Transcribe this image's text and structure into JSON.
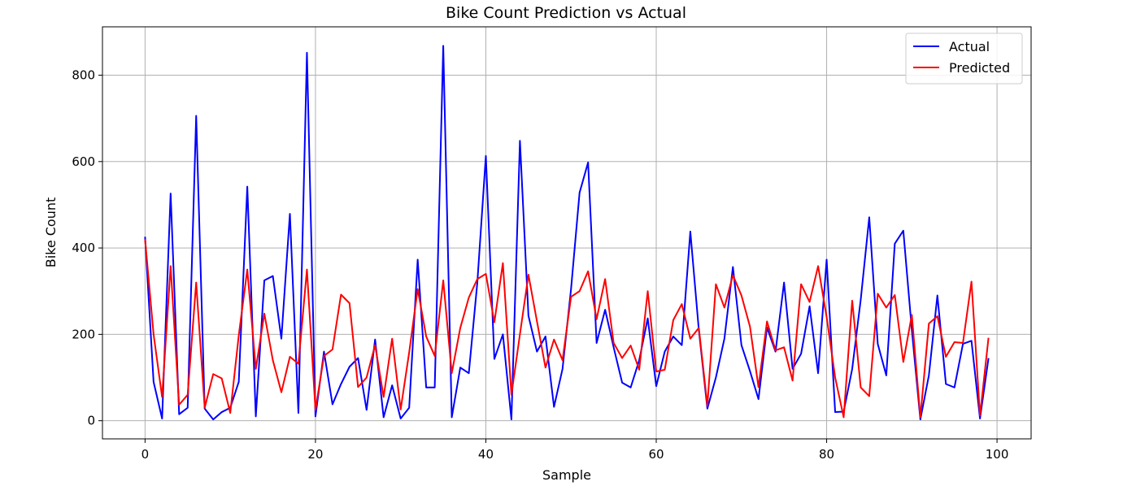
{
  "chart_data": {
    "type": "line",
    "title": "Bike Count Prediction vs Actual",
    "xlabel": "Sample",
    "ylabel": "Bike Count",
    "xlim": [
      -5,
      104
    ],
    "ylim": [
      -42,
      912
    ],
    "xticks": [
      0,
      20,
      40,
      60,
      80,
      100
    ],
    "yticks": [
      0,
      200,
      400,
      600,
      800
    ],
    "grid": true,
    "legend_position": "top-right",
    "x": [
      0,
      1,
      2,
      3,
      4,
      5,
      6,
      7,
      8,
      9,
      10,
      11,
      12,
      13,
      14,
      15,
      16,
      17,
      18,
      19,
      20,
      21,
      22,
      23,
      24,
      25,
      26,
      27,
      28,
      29,
      30,
      31,
      32,
      33,
      34,
      35,
      36,
      37,
      38,
      39,
      40,
      41,
      42,
      43,
      44,
      45,
      46,
      47,
      48,
      49,
      50,
      51,
      52,
      53,
      54,
      55,
      56,
      57,
      58,
      59,
      60,
      61,
      62,
      63,
      64,
      65,
      66,
      67,
      68,
      69,
      70,
      71,
      72,
      73,
      74,
      75,
      76,
      77,
      78,
      79,
      80,
      81,
      82,
      83,
      84,
      85,
      86,
      87,
      88,
      89,
      90,
      91,
      92,
      93,
      94,
      95,
      96,
      97,
      98,
      99
    ],
    "series": [
      {
        "name": "Actual",
        "color": "#0000ff",
        "values": [
          426,
          90,
          5,
          526,
          15,
          30,
          706,
          28,
          3,
          20,
          30,
          90,
          542,
          10,
          325,
          335,
          190,
          479,
          18,
          852,
          10,
          160,
          38,
          85,
          125,
          145,
          25,
          188,
          8,
          82,
          5,
          30,
          373,
          77,
          77,
          868,
          8,
          123,
          110,
          320,
          613,
          143,
          200,
          3,
          648,
          243,
          160,
          195,
          32,
          120,
          305,
          528,
          598,
          180,
          257,
          170,
          88,
          77,
          140,
          237,
          80,
          160,
          195,
          175,
          438,
          210,
          28,
          100,
          190,
          356,
          175,
          115,
          50,
          216,
          160,
          320,
          120,
          155,
          265,
          110,
          373,
          20,
          21,
          120,
          280,
          471,
          178,
          105,
          410,
          440,
          210,
          3,
          105,
          290,
          85,
          77,
          178,
          185,
          5,
          145
        ]
      },
      {
        "name": "Predicted",
        "color": "#ff0000",
        "values": [
          420,
          200,
          55,
          358,
          37,
          60,
          320,
          30,
          108,
          98,
          18,
          198,
          350,
          120,
          248,
          140,
          66,
          148,
          132,
          350,
          25,
          150,
          165,
          292,
          272,
          78,
          100,
          175,
          55,
          190,
          26,
          158,
          305,
          195,
          150,
          325,
          110,
          215,
          285,
          328,
          340,
          228,
          365,
          60,
          200,
          338,
          230,
          123,
          188,
          140,
          287,
          300,
          346,
          235,
          328,
          180,
          145,
          174,
          118,
          300,
          114,
          118,
          233,
          270,
          190,
          215,
          35,
          316,
          262,
          337,
          290,
          218,
          78,
          230,
          163,
          170,
          93,
          316,
          275,
          358,
          240,
          100,
          8,
          278,
          77,
          57,
          294,
          262,
          291,
          136,
          245,
          8,
          225,
          242,
          148,
          182,
          180,
          322,
          12,
          192
        ]
      }
    ]
  }
}
